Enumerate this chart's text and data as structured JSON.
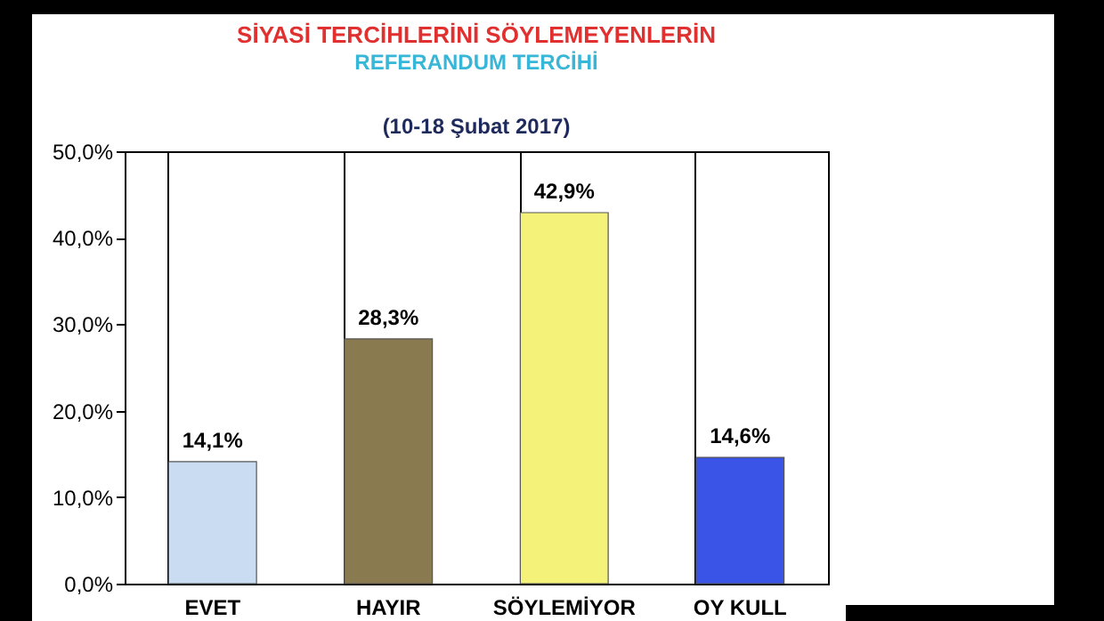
{
  "chart_data": {
    "type": "bar",
    "title": "SİYASİ TERCİHLERİNİ SÖYLEMEYENLERİN",
    "subtitle": "REFERANDUM TERCİHİ",
    "annotations": [
      "(10-18 Şubat 2017)"
    ],
    "categories": [
      "EVET",
      "HAYIR",
      "SÖYLEMİYOR",
      "OY KULL"
    ],
    "values": [
      14.1,
      28.3,
      42.9,
      14.6
    ],
    "colors": [
      "#c9dcf2",
      "#8a7a50",
      "#f5f27a",
      "#3a54e8"
    ],
    "value_labels": [
      "14,1%",
      "28,3%",
      "42,9%",
      "14,6%"
    ],
    "ylim": [
      0,
      50
    ],
    "yticks": [
      {
        "value": 0,
        "label": "0,0%"
      },
      {
        "value": 10,
        "label": "10,0%"
      },
      {
        "value": 20,
        "label": "20,0%"
      },
      {
        "value": 30,
        "label": "30,0%"
      },
      {
        "value": 40,
        "label": "40,0%"
      },
      {
        "value": 50,
        "label": "50,0%"
      }
    ],
    "grid": "x"
  }
}
